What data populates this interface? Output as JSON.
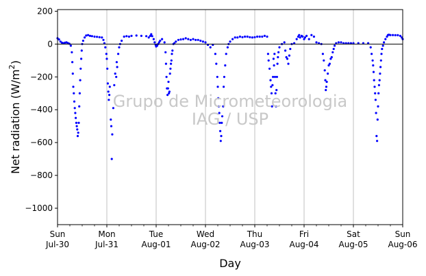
{
  "chart_data": {
    "type": "scatter",
    "title": "",
    "xlabel": "Day",
    "ylabel": "Net radiation (W/m²)",
    "ylabel_parts": {
      "main": "Net radiation (W/m",
      "sup": "2",
      "end": ")"
    },
    "ylim": [
      -1100,
      210
    ],
    "yticks": [
      200,
      0,
      -200,
      -400,
      -600,
      -800,
      -1000
    ],
    "yticks_labels": [
      "200",
      "0",
      "−200",
      "−400",
      "−600",
      "−800",
      "−1000"
    ],
    "xlim": [
      0,
      7
    ],
    "x_unit": "days since Sun Jul-30 00:00",
    "xticks": [
      {
        "day": 0,
        "weekday": "Sun",
        "date": "Jul-30"
      },
      {
        "day": 1,
        "weekday": "Mon",
        "date": "Jul-31"
      },
      {
        "day": 2,
        "weekday": "Tue",
        "date": "Aug-01"
      },
      {
        "day": 3,
        "weekday": "Wed",
        "date": "Aug-02"
      },
      {
        "day": 4,
        "weekday": "Thu",
        "date": "Aug-03"
      },
      {
        "day": 5,
        "weekday": "Fri",
        "date": "Aug-04"
      },
      {
        "day": 6,
        "weekday": "Sat",
        "date": "Aug-05"
      },
      {
        "day": 7,
        "weekday": "Sun",
        "date": "Aug-06"
      }
    ],
    "vertical_grid": true,
    "zero_line": true,
    "marker_color": "#0000ff",
    "watermark": [
      "Grupo de Micrometeorologia",
      "IAG / USP"
    ],
    "series": [
      {
        "name": "",
        "points": [
          [
            0.0,
            35
          ],
          [
            0.03,
            28
          ],
          [
            0.06,
            15
          ],
          [
            0.09,
            8
          ],
          [
            0.12,
            5
          ],
          [
            0.15,
            8
          ],
          [
            0.18,
            10
          ],
          [
            0.21,
            6
          ],
          [
            0.24,
            2
          ],
          [
            0.27,
            -10
          ],
          [
            0.29,
            -50
          ],
          [
            0.3,
            -110
          ],
          [
            0.31,
            -180
          ],
          [
            0.32,
            -260
          ],
          [
            0.33,
            -300
          ],
          [
            0.34,
            -350
          ],
          [
            0.35,
            -390
          ],
          [
            0.36,
            -420
          ],
          [
            0.37,
            -450
          ],
          [
            0.38,
            -480
          ],
          [
            0.39,
            -500
          ],
          [
            0.4,
            -520
          ],
          [
            0.41,
            -560
          ],
          [
            0.42,
            -540
          ],
          [
            0.43,
            -480
          ],
          [
            0.44,
            -380
          ],
          [
            0.45,
            -300
          ],
          [
            0.46,
            -220
          ],
          [
            0.47,
            -150
          ],
          [
            0.48,
            -90
          ],
          [
            0.49,
            -40
          ],
          [
            0.5,
            0
          ],
          [
            0.52,
            20
          ],
          [
            0.55,
            40
          ],
          [
            0.58,
            52
          ],
          [
            0.62,
            55
          ],
          [
            0.66,
            50
          ],
          [
            0.7,
            48
          ],
          [
            0.75,
            45
          ],
          [
            0.8,
            44
          ],
          [
            0.85,
            42
          ],
          [
            0.9,
            40
          ],
          [
            0.93,
            25
          ],
          [
            0.95,
            5
          ],
          [
            0.97,
            -20
          ],
          [
            0.99,
            -60
          ],
          [
            1.0,
            -90
          ],
          [
            1.01,
            -150
          ],
          [
            1.02,
            -240
          ],
          [
            1.03,
            -290
          ],
          [
            1.04,
            -340
          ],
          [
            1.05,
            -310
          ],
          [
            1.06,
            -260
          ],
          [
            1.08,
            -460
          ],
          [
            1.09,
            -500
          ],
          [
            1.1,
            -700
          ],
          [
            1.11,
            -550
          ],
          [
            1.13,
            -390
          ],
          [
            1.15,
            -250
          ],
          [
            1.17,
            -180
          ],
          [
            1.19,
            -200
          ],
          [
            1.2,
            -110
          ],
          [
            1.21,
            -140
          ],
          [
            1.23,
            -60
          ],
          [
            1.25,
            -20
          ],
          [
            1.27,
            0
          ],
          [
            1.3,
            20
          ],
          [
            1.35,
            45
          ],
          [
            1.4,
            48
          ],
          [
            1.45,
            45
          ],
          [
            1.5,
            50
          ],
          [
            1.6,
            52
          ],
          [
            1.7,
            50
          ],
          [
            1.8,
            48
          ],
          [
            1.85,
            40
          ],
          [
            1.88,
            50
          ],
          [
            1.9,
            60
          ],
          [
            1.92,
            48
          ],
          [
            1.95,
            30
          ],
          [
            1.97,
            10
          ],
          [
            1.99,
            -5
          ],
          [
            2.0,
            -15
          ],
          [
            2.02,
            -10
          ],
          [
            2.04,
            0
          ],
          [
            2.06,
            10
          ],
          [
            2.08,
            20
          ],
          [
            2.12,
            30
          ],
          [
            2.17,
            10
          ],
          [
            2.19,
            -50
          ],
          [
            2.2,
            -120
          ],
          [
            2.21,
            -200
          ],
          [
            2.22,
            -270
          ],
          [
            2.23,
            -310
          ],
          [
            2.24,
            -270
          ],
          [
            2.25,
            -230
          ],
          [
            2.26,
            -300
          ],
          [
            2.27,
            -290
          ],
          [
            2.28,
            -180
          ],
          [
            2.29,
            -150
          ],
          [
            2.3,
            -120
          ],
          [
            2.31,
            -100
          ],
          [
            2.32,
            -60
          ],
          [
            2.33,
            -40
          ],
          [
            2.35,
            0
          ],
          [
            2.37,
            5
          ],
          [
            2.4,
            15
          ],
          [
            2.45,
            25
          ],
          [
            2.5,
            28
          ],
          [
            2.55,
            30
          ],
          [
            2.6,
            35
          ],
          [
            2.65,
            30
          ],
          [
            2.7,
            25
          ],
          [
            2.75,
            30
          ],
          [
            2.8,
            25
          ],
          [
            2.85,
            25
          ],
          [
            2.9,
            20
          ],
          [
            2.95,
            15
          ],
          [
            3.0,
            10
          ],
          [
            3.05,
            -5
          ],
          [
            3.1,
            -20
          ],
          [
            3.15,
            -5
          ],
          [
            3.2,
            -60
          ],
          [
            3.22,
            -120
          ],
          [
            3.24,
            -200
          ],
          [
            3.25,
            -260
          ],
          [
            3.26,
            -330
          ],
          [
            3.27,
            -380
          ],
          [
            3.28,
            -420
          ],
          [
            3.29,
            -480
          ],
          [
            3.3,
            -530
          ],
          [
            3.31,
            -590
          ],
          [
            3.32,
            -560
          ],
          [
            3.33,
            -480
          ],
          [
            3.34,
            -440
          ],
          [
            3.36,
            -380
          ],
          [
            3.37,
            -260
          ],
          [
            3.38,
            -200
          ],
          [
            3.4,
            -130
          ],
          [
            3.42,
            -60
          ],
          [
            3.45,
            -20
          ],
          [
            3.47,
            0
          ],
          [
            3.5,
            15
          ],
          [
            3.55,
            30
          ],
          [
            3.6,
            40
          ],
          [
            3.65,
            40
          ],
          [
            3.7,
            45
          ],
          [
            3.75,
            42
          ],
          [
            3.8,
            45
          ],
          [
            3.85,
            45
          ],
          [
            3.9,
            42
          ],
          [
            3.95,
            40
          ],
          [
            4.0,
            42
          ],
          [
            4.05,
            45
          ],
          [
            4.1,
            45
          ],
          [
            4.15,
            45
          ],
          [
            4.2,
            50
          ],
          [
            4.25,
            45
          ],
          [
            4.27,
            -60
          ],
          [
            4.28,
            -100
          ],
          [
            4.3,
            -150
          ],
          [
            4.32,
            -220
          ],
          [
            4.33,
            -260
          ],
          [
            4.34,
            -300
          ],
          [
            4.35,
            -380
          ],
          [
            4.36,
            -250
          ],
          [
            4.37,
            -200
          ],
          [
            4.38,
            -90
          ],
          [
            4.39,
            -130
          ],
          [
            4.4,
            -60
          ],
          [
            4.41,
            -200
          ],
          [
            4.42,
            -300
          ],
          [
            4.43,
            -380
          ],
          [
            4.44,
            -280
          ],
          [
            4.45,
            -200
          ],
          [
            4.46,
            -120
          ],
          [
            4.47,
            -80
          ],
          [
            4.48,
            -50
          ],
          [
            4.5,
            -20
          ],
          [
            4.55,
            0
          ],
          [
            4.6,
            10
          ],
          [
            4.62,
            -40
          ],
          [
            4.64,
            -80
          ],
          [
            4.66,
            -90
          ],
          [
            4.68,
            -120
          ],
          [
            4.7,
            -70
          ],
          [
            4.72,
            -30
          ],
          [
            4.75,
            0
          ],
          [
            4.8,
            5
          ],
          [
            4.85,
            30
          ],
          [
            4.88,
            45
          ],
          [
            4.9,
            55
          ],
          [
            4.92,
            40
          ],
          [
            4.95,
            50
          ],
          [
            4.97,
            45
          ],
          [
            5.0,
            30
          ],
          [
            5.02,
            40
          ],
          [
            5.05,
            50
          ],
          [
            5.1,
            30
          ],
          [
            5.15,
            55
          ],
          [
            5.2,
            45
          ],
          [
            5.25,
            10
          ],
          [
            5.3,
            5
          ],
          [
            5.35,
            0
          ],
          [
            5.38,
            -60
          ],
          [
            5.4,
            -100
          ],
          [
            5.42,
            -160
          ],
          [
            5.43,
            -220
          ],
          [
            5.44,
            -280
          ],
          [
            5.45,
            -260
          ],
          [
            5.46,
            -230
          ],
          [
            5.48,
            -180
          ],
          [
            5.5,
            -130
          ],
          [
            5.52,
            -120
          ],
          [
            5.54,
            -90
          ],
          [
            5.56,
            -80
          ],
          [
            5.58,
            -50
          ],
          [
            5.6,
            -30
          ],
          [
            5.62,
            -10
          ],
          [
            5.65,
            5
          ],
          [
            5.7,
            10
          ],
          [
            5.75,
            10
          ],
          [
            5.8,
            5
          ],
          [
            5.85,
            5
          ],
          [
            5.9,
            5
          ],
          [
            5.95,
            5
          ],
          [
            6.0,
            5
          ],
          [
            6.1,
            5
          ],
          [
            6.2,
            5
          ],
          [
            6.3,
            5
          ],
          [
            6.35,
            -20
          ],
          [
            6.37,
            -60
          ],
          [
            6.39,
            -100
          ],
          [
            6.4,
            -130
          ],
          [
            6.41,
            -170
          ],
          [
            6.42,
            -220
          ],
          [
            6.43,
            -260
          ],
          [
            6.44,
            -300
          ],
          [
            6.45,
            -340
          ],
          [
            6.46,
            -420
          ],
          [
            6.47,
            -560
          ],
          [
            6.48,
            -590
          ],
          [
            6.49,
            -460
          ],
          [
            6.5,
            -380
          ],
          [
            6.51,
            -300
          ],
          [
            6.52,
            -250
          ],
          [
            6.53,
            -220
          ],
          [
            6.54,
            -180
          ],
          [
            6.55,
            -140
          ],
          [
            6.56,
            -100
          ],
          [
            6.57,
            -60
          ],
          [
            6.58,
            -30
          ],
          [
            6.6,
            -10
          ],
          [
            6.62,
            10
          ],
          [
            6.65,
            30
          ],
          [
            6.68,
            45
          ],
          [
            6.7,
            55
          ],
          [
            6.72,
            57
          ],
          [
            6.75,
            55
          ],
          [
            6.8,
            55
          ],
          [
            6.85,
            54
          ],
          [
            6.9,
            54
          ],
          [
            6.95,
            50
          ],
          [
            6.98,
            40
          ],
          [
            7.0,
            30
          ]
        ]
      }
    ]
  }
}
